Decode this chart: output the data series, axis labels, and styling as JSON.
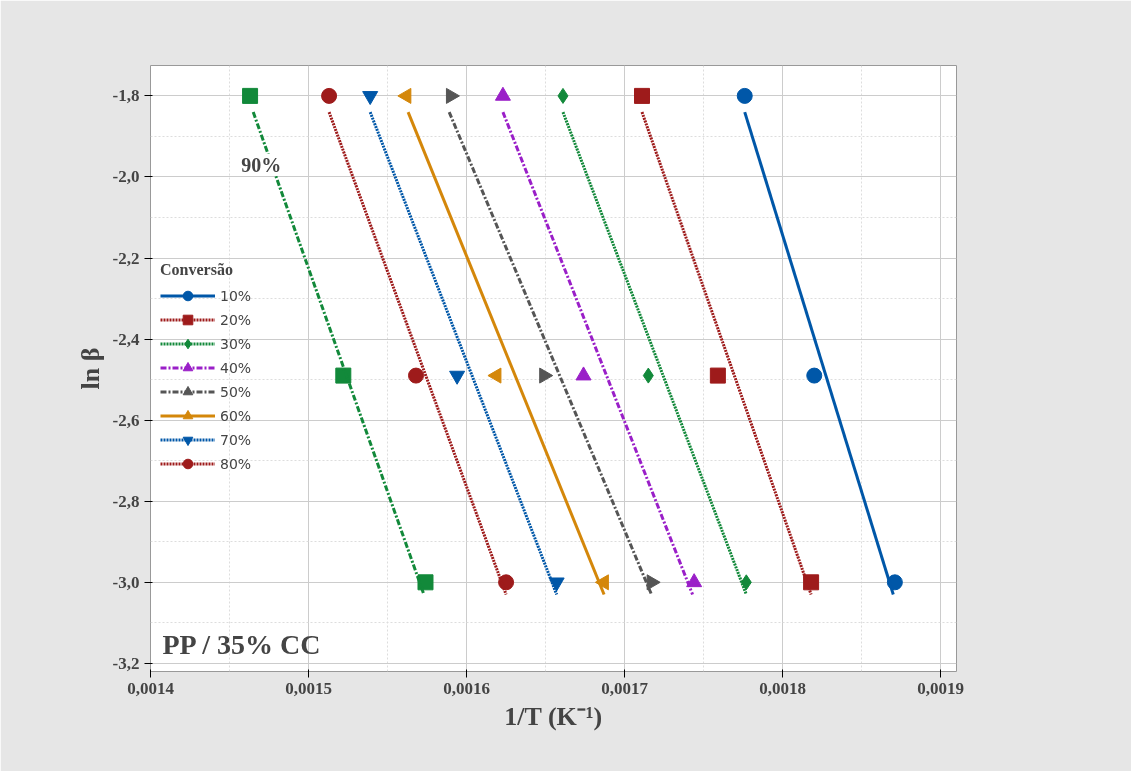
{
  "chart_data": {
    "type": "scatter",
    "xlabel": "1/T (K⁻¹)",
    "ylabel": "ln β",
    "legend_title": "Conversão",
    "xlim": [
      0.0014,
      0.00191
    ],
    "ylim": [
      -3.22,
      -1.725
    ],
    "xticks": [
      {
        "value": 0.0014,
        "label": "0,0014"
      },
      {
        "value": 0.0015,
        "label": "0,0015"
      },
      {
        "value": 0.0016,
        "label": "0,0016"
      },
      {
        "value": 0.0017,
        "label": "0,0017"
      },
      {
        "value": 0.0018,
        "label": "0,0018"
      },
      {
        "value": 0.0019,
        "label": "0,0019"
      }
    ],
    "yticks": [
      {
        "value": -1.8,
        "label": "-1,8"
      },
      {
        "value": -2.0,
        "label": "-2,0"
      },
      {
        "value": -2.2,
        "label": "-2,2"
      },
      {
        "value": -2.4,
        "label": "-2,4"
      },
      {
        "value": -2.6,
        "label": "-2,6"
      },
      {
        "value": -2.8,
        "label": "-2,8"
      },
      {
        "value": -3.0,
        "label": "-3,0"
      },
      {
        "value": -3.2,
        "label": "-3,2"
      }
    ],
    "grid": true,
    "legend": "left",
    "annotations": [
      {
        "text": "90%",
        "x": 0.00147,
        "y": -1.97
      },
      "PP / 35% CC"
    ],
    "series": [
      {
        "name": "10%",
        "color": "#0057a8",
        "marker": "circle",
        "line_style": "solid",
        "x": [
          0.001776,
          0.00182,
          0.001871
        ],
        "values": [
          -1.8,
          -2.49,
          -3.0
        ]
      },
      {
        "name": "20%",
        "color": "#9e1b1b",
        "marker": "square",
        "line_style": "dotted",
        "x": [
          0.001711,
          0.001759,
          0.001818
        ],
        "values": [
          -1.8,
          -2.49,
          -3.0
        ]
      },
      {
        "name": "30%",
        "color": "#12893a",
        "marker": "diamond",
        "line_style": "dotted",
        "x": [
          0.001661,
          0.001715,
          0.001777
        ],
        "values": [
          -1.8,
          -2.49,
          -3.0
        ]
      },
      {
        "name": "40%",
        "color": "#9a1fc8",
        "marker": "triangle",
        "line_style": "dashdot",
        "x": [
          0.001623,
          0.001674,
          0.001744
        ],
        "values": [
          -1.8,
          -2.49,
          -3.0
        ]
      },
      {
        "name": "50%",
        "color": "#555555",
        "marker": "triangle_right",
        "line_style": "dashdot",
        "x": [
          0.00159,
          0.001649,
          0.001717
        ],
        "values": [
          -1.8,
          -2.49,
          -3.0
        ]
      },
      {
        "name": "60%",
        "color": "#d4870a",
        "marker": "triangle_left",
        "line_style": "solid",
        "x": [
          0.001562,
          0.001619,
          0.001687
        ],
        "values": [
          -1.8,
          -2.49,
          -3.0
        ]
      },
      {
        "name": "70%",
        "color": "#0057a8",
        "marker": "triangle_down",
        "line_style": "dotted",
        "x": [
          0.001539,
          0.001594,
          0.001657
        ],
        "values": [
          -1.8,
          -2.49,
          -3.0
        ]
      },
      {
        "name": "80%",
        "color": "#9e1b1b",
        "marker": "circle",
        "line_style": "dotted",
        "x": [
          0.001513,
          0.001568,
          0.001625
        ],
        "values": [
          -1.8,
          -2.49,
          -3.0
        ]
      },
      {
        "color": "#12893a",
        "marker": "square",
        "x": [
          0.001463,
          0.001522,
          0.001574
        ],
        "values": [
          -1.8,
          -2.49,
          -3.0
        ]
      },
      {
        "type": "line",
        "color": "#0057a8",
        "line_style": "solid",
        "x": [
          0.001776,
          0.00187
        ],
        "values": [
          -1.84,
          -3.03
        ]
      },
      {
        "type": "line",
        "color": "#9e1b1b",
        "line_style": "dotted",
        "x": [
          0.001711,
          0.001818
        ],
        "values": [
          -1.84,
          -3.03
        ]
      },
      {
        "type": "line",
        "color": "#12893a",
        "line_style": "dotted",
        "x": [
          0.001661,
          0.001777
        ],
        "values": [
          -1.84,
          -3.03
        ]
      },
      {
        "type": "line",
        "color": "#9a1fc8",
        "line_style": "dashdot",
        "x": [
          0.001623,
          0.001743
        ],
        "values": [
          -1.84,
          -3.03
        ]
      },
      {
        "type": "line",
        "color": "#555555",
        "line_style": "dashdot",
        "x": [
          0.001589,
          0.001717
        ],
        "values": [
          -1.84,
          -3.03
        ]
      },
      {
        "type": "line",
        "color": "#d4870a",
        "line_style": "solid",
        "x": [
          0.001563,
          0.001687
        ],
        "values": [
          -1.84,
          -3.03
        ]
      },
      {
        "type": "line",
        "color": "#0057a8",
        "line_style": "dotted",
        "x": [
          0.001539,
          0.001657
        ],
        "values": [
          -1.84,
          -3.03
        ]
      },
      {
        "type": "line",
        "color": "#9e1b1b",
        "line_style": "dotted",
        "x": [
          0.001513,
          0.001625
        ],
        "values": [
          -1.84,
          -3.03
        ]
      },
      {
        "type": "line",
        "color": "#12893a",
        "line_style": "dashdot",
        "x": [
          0.001465,
          0.001573
        ],
        "values": [
          -1.84,
          -3.03
        ]
      }
    ]
  }
}
